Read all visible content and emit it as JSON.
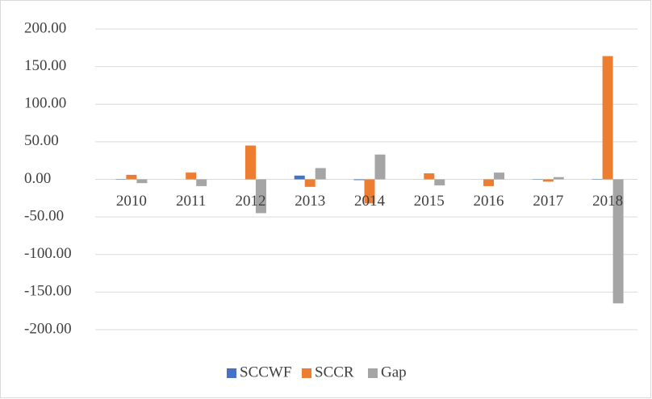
{
  "chart_data": {
    "type": "bar",
    "categories": [
      "2010",
      "2011",
      "2012",
      "2013",
      "2014",
      "2015",
      "2016",
      "2017",
      "2018"
    ],
    "series": [
      {
        "name": "SCCWF",
        "color": "#4472c4",
        "values": [
          0.5,
          0,
          0,
          5,
          -1,
          0,
          0,
          0.5,
          0.5
        ]
      },
      {
        "name": "SCCR",
        "color": "#ed7d31",
        "values": [
          6,
          9,
          45,
          -10,
          -32,
          8,
          -9,
          -3,
          164
        ]
      },
      {
        "name": "Gap",
        "color": "#a5a5a5",
        "values": [
          -5,
          -9,
          -45,
          15,
          33,
          -8,
          9,
          3,
          -165
        ]
      }
    ],
    "ylim": [
      -200,
      200
    ],
    "yticks": [
      {
        "value": -200,
        "label": "-200.00"
      },
      {
        "value": -150,
        "label": "-150.00"
      },
      {
        "value": -100,
        "label": "-100.00"
      },
      {
        "value": -50,
        "label": "-50.00"
      },
      {
        "value": 0,
        "label": "0.00"
      },
      {
        "value": 50,
        "label": "50.00"
      },
      {
        "value": 100,
        "label": "100.00"
      },
      {
        "value": 150,
        "label": "150.00"
      },
      {
        "value": 200,
        "label": "200.00"
      }
    ],
    "grid": true,
    "legend": "bottom"
  }
}
